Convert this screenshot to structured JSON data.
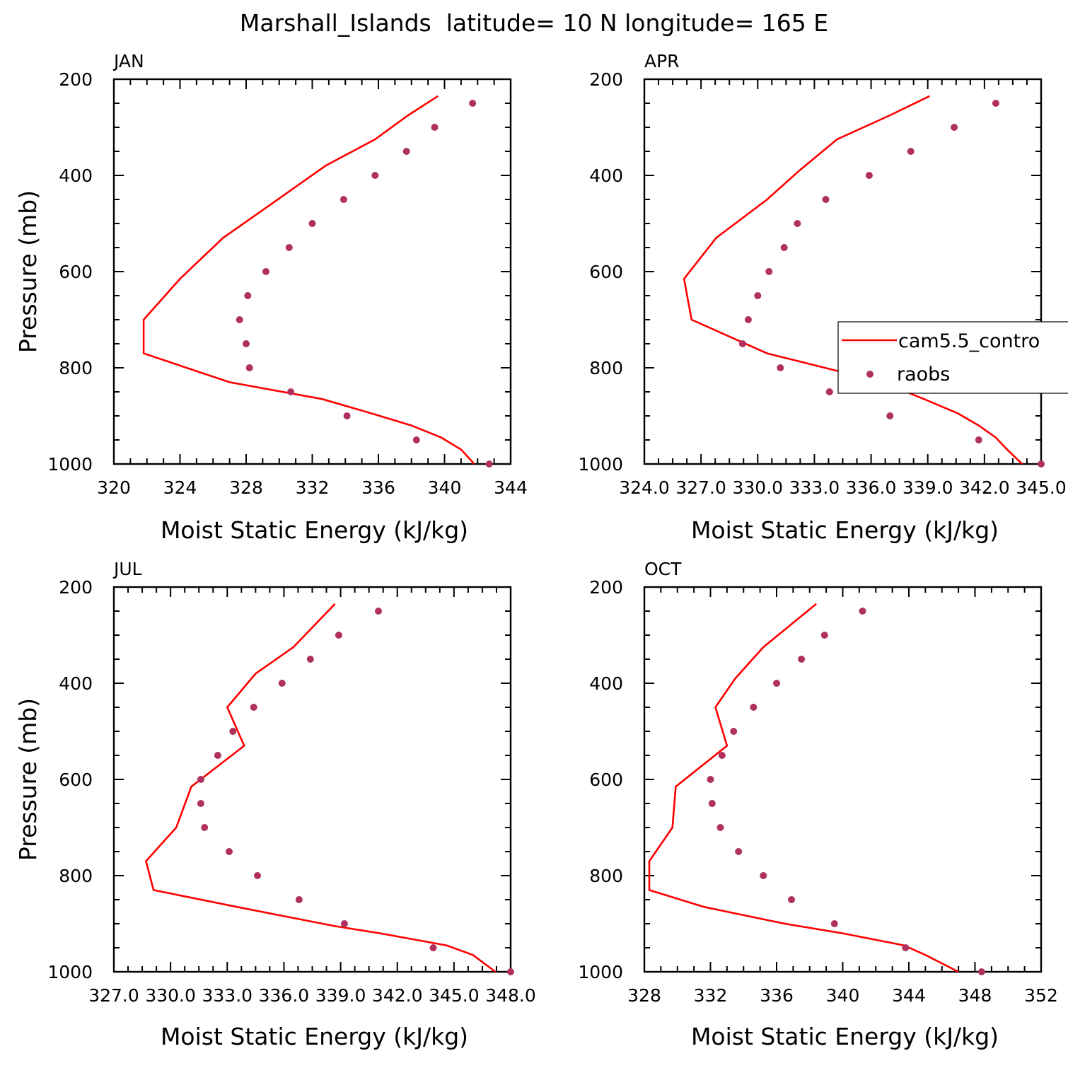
{
  "title": "Marshall_Islands  latitude= 10 N longitude= 165 E",
  "chart_data": [
    {
      "type": "line",
      "panel": "JAN",
      "xlabel": "Moist Static Energy (kJ/kg)",
      "ylabel": "Pressure (mb)",
      "xlim": [
        320,
        344
      ],
      "ylim": [
        1000,
        200
      ],
      "xticks": [
        "320",
        "324",
        "328",
        "332",
        "336",
        "340",
        "344"
      ],
      "yticks": [
        "200",
        "400",
        "600",
        "800",
        "1000"
      ],
      "legend": null,
      "series": [
        {
          "name": "cam5.5_control",
          "style": "line",
          "x": [
            341.8,
            341.0,
            339.8,
            338.0,
            335.6,
            332.6,
            327.0,
            321.8,
            321.8,
            324.0,
            326.6,
            329.5,
            332.8,
            335.8,
            337.8,
            339.6
          ],
          "y": [
            1000,
            970,
            945,
            920,
            895,
            865,
            830,
            770,
            700,
            615,
            530,
            460,
            380,
            325,
            275,
            235
          ]
        },
        {
          "name": "raobs",
          "style": "dots",
          "x": [
            342.7,
            338.3,
            334.1,
            330.7,
            328.2,
            328.0,
            327.6,
            328.1,
            329.2,
            330.6,
            332.0,
            333.9,
            335.8,
            337.7,
            339.4,
            341.7
          ],
          "y": [
            1000,
            950,
            900,
            850,
            800,
            750,
            700,
            650,
            600,
            550,
            500,
            450,
            400,
            350,
            300,
            250
          ]
        }
      ]
    },
    {
      "type": "line",
      "panel": "APR",
      "xlabel": "Moist Static Energy (kJ/kg)",
      "ylabel": "",
      "xlim": [
        324,
        345
      ],
      "ylim": [
        1000,
        200
      ],
      "xticks": [
        "324.0",
        "327.0",
        "330.0",
        "333.0",
        "336.0",
        "339.0",
        "342.0",
        "345.0"
      ],
      "yticks": [
        "200",
        "400",
        "600",
        "800",
        "1000"
      ],
      "legend": "right",
      "series": [
        {
          "name": "cam5.5_control",
          "style": "line",
          "x": [
            344.0,
            343.2,
            342.6,
            341.7,
            340.6,
            338.8,
            336.6,
            330.5,
            326.5,
            326.1,
            327.8,
            330.5,
            332.2,
            334.2,
            337.0,
            339.1
          ],
          "y": [
            1000,
            970,
            945,
            920,
            895,
            865,
            830,
            770,
            700,
            615,
            530,
            450,
            390,
            325,
            275,
            235
          ]
        },
        {
          "name": "raobs",
          "style": "dots",
          "x": [
            345.0,
            341.7,
            337.0,
            333.8,
            331.2,
            329.2,
            329.5,
            330.0,
            330.6,
            331.4,
            332.1,
            333.6,
            335.9,
            338.1,
            340.4,
            342.6
          ],
          "y": [
            1000,
            950,
            900,
            850,
            800,
            750,
            700,
            650,
            600,
            550,
            500,
            450,
            400,
            350,
            300,
            250
          ]
        }
      ]
    },
    {
      "type": "line",
      "panel": "JUL",
      "xlabel": "Moist Static Energy (kJ/kg)",
      "ylabel": "Pressure (mb)",
      "xlim": [
        327,
        348
      ],
      "ylim": [
        1000,
        200
      ],
      "xticks": [
        "327.0",
        "330.0",
        "333.0",
        "336.0",
        "339.0",
        "342.0",
        "345.0",
        "348.0"
      ],
      "yticks": [
        "200",
        "400",
        "600",
        "800",
        "1000"
      ],
      "legend": null,
      "series": [
        {
          "name": "cam5.5_control",
          "style": "line",
          "x": [
            347.2,
            346.0,
            344.6,
            341.1,
            338.7,
            333.5,
            329.1,
            328.7,
            330.3,
            331.1,
            333.9,
            333.0,
            334.5,
            336.5,
            338.7
          ],
          "y": [
            1000,
            965,
            945,
            920,
            905,
            865,
            830,
            770,
            700,
            615,
            530,
            450,
            380,
            325,
            235
          ]
        },
        {
          "name": "raobs",
          "style": "dots",
          "x": [
            348.0,
            343.9,
            339.2,
            336.8,
            334.6,
            333.1,
            331.8,
            331.6,
            331.6,
            332.5,
            333.3,
            334.4,
            335.9,
            337.4,
            338.9,
            341.0
          ],
          "y": [
            1000,
            950,
            900,
            850,
            800,
            750,
            700,
            650,
            600,
            550,
            500,
            450,
            400,
            350,
            300,
            250
          ]
        }
      ]
    },
    {
      "type": "line",
      "panel": "OCT",
      "xlabel": "Moist Static Energy (kJ/kg)",
      "ylabel": "",
      "xlim": [
        328,
        352
      ],
      "ylim": [
        1000,
        200
      ],
      "xticks": [
        "328",
        "332",
        "336",
        "340",
        "344",
        "348",
        "352"
      ],
      "yticks": [
        "200",
        "400",
        "600",
        "800",
        "1000"
      ],
      "legend": null,
      "series": [
        {
          "name": "cam5.5_control",
          "style": "line",
          "x": [
            347.0,
            345.0,
            343.7,
            340.0,
            336.5,
            331.6,
            328.3,
            328.3,
            329.7,
            329.9,
            333.0,
            332.3,
            333.5,
            335.2,
            338.4
          ],
          "y": [
            1000,
            965,
            945,
            920,
            900,
            865,
            830,
            770,
            700,
            615,
            530,
            450,
            390,
            325,
            235
          ]
        },
        {
          "name": "raobs",
          "style": "dots",
          "x": [
            348.4,
            343.8,
            339.5,
            336.9,
            335.2,
            333.7,
            332.6,
            332.1,
            332.0,
            332.7,
            333.4,
            334.6,
            336.0,
            337.5,
            338.9,
            341.2
          ],
          "y": [
            1000,
            950,
            900,
            850,
            800,
            750,
            700,
            650,
            600,
            550,
            500,
            450,
            400,
            350,
            300,
            250
          ]
        }
      ]
    }
  ],
  "legend": {
    "entries": [
      "cam5.5_contro",
      "raobs"
    ]
  },
  "colors": {
    "model": "#ff0000",
    "obs": "#b03060",
    "axis": "#000000"
  }
}
